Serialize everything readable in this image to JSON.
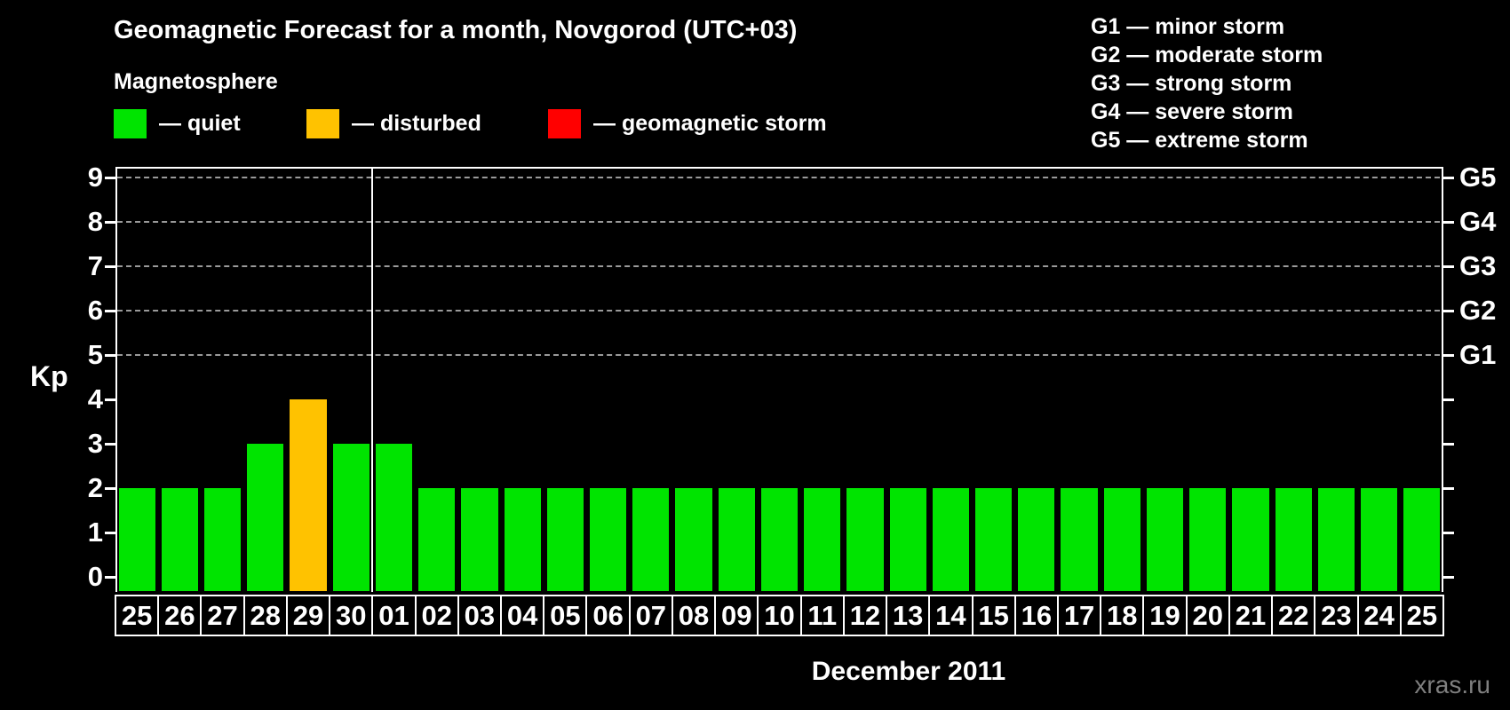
{
  "watermark": "xras.ru",
  "legend": {
    "title": "Magnetosphere",
    "items": [
      {
        "label": "— quiet",
        "status": "quiet"
      },
      {
        "label": "— disturbed",
        "status": "disturbed"
      },
      {
        "label": "— geomagnetic storm",
        "status": "storm"
      }
    ]
  },
  "g_legend": {
    "items": [
      "G1 — minor storm",
      "G2 — moderate storm",
      "G3 — strong storm",
      "G4 — severe storm",
      "G5 — extreme storm"
    ]
  },
  "chart_data": {
    "type": "bar",
    "title": "Geomagnetic Forecast for a month, Novgorod (UTC+03)",
    "ylabel": "Kp",
    "ylim": [
      0,
      9
    ],
    "y_ticks": [
      "0",
      "1",
      "2",
      "3",
      "4",
      "5",
      "6",
      "7",
      "8",
      "9"
    ],
    "grid_levels": [
      5,
      6,
      7,
      8,
      9
    ],
    "grid": "dashed-horizontal-on-storm-levels-only",
    "legend_position": "top",
    "right_axis": {
      "labels": [
        {
          "kp": 5,
          "label": "G1"
        },
        {
          "kp": 6,
          "label": "G2"
        },
        {
          "kp": 7,
          "label": "G3"
        },
        {
          "kp": 8,
          "label": "G4"
        },
        {
          "kp": 9,
          "label": "G5"
        }
      ]
    },
    "categories": [
      "25",
      "26",
      "27",
      "28",
      "29",
      "30",
      "01",
      "02",
      "03",
      "04",
      "05",
      "06",
      "07",
      "08",
      "09",
      "10",
      "11",
      "12",
      "13",
      "14",
      "15",
      "16",
      "17",
      "18",
      "19",
      "20",
      "21",
      "22",
      "23",
      "24",
      "25"
    ],
    "values": [
      2,
      2,
      2,
      3,
      4,
      3,
      3,
      2,
      2,
      2,
      2,
      2,
      2,
      2,
      2,
      2,
      2,
      2,
      2,
      2,
      2,
      2,
      2,
      2,
      2,
      2,
      2,
      2,
      2,
      2,
      2
    ],
    "statuses": [
      "quiet",
      "quiet",
      "quiet",
      "quiet",
      "disturbed",
      "quiet",
      "quiet",
      "quiet",
      "quiet",
      "quiet",
      "quiet",
      "quiet",
      "quiet",
      "quiet",
      "quiet",
      "quiet",
      "quiet",
      "quiet",
      "quiet",
      "quiet",
      "quiet",
      "quiet",
      "quiet",
      "quiet",
      "quiet",
      "quiet",
      "quiet",
      "quiet",
      "quiet",
      "quiet",
      "quiet"
    ],
    "divider_after_index": 5,
    "month_label": "December 2011",
    "status_colors": {
      "quiet": "#00e400",
      "disturbed": "#ffc200",
      "storm": "#ff0000"
    }
  }
}
